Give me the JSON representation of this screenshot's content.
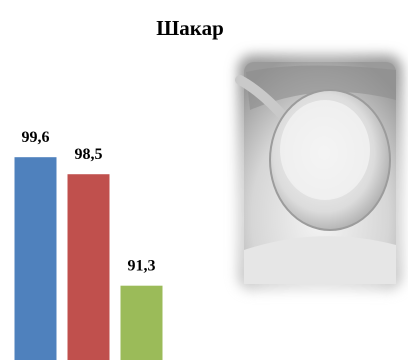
{
  "chart_data": {
    "type": "bar",
    "title": "Шакар",
    "categories": [
      null,
      null,
      null
    ],
    "series": [
      {
        "values": [
          99.6,
          98.5,
          91.3
        ],
        "value_labels": [
          "99,6",
          "98,5",
          "91,3"
        ],
        "colors": [
          "#4f81bd",
          "#c0504d",
          "#9bbb59"
        ]
      }
    ],
    "ylim": [
      86.5,
      100
    ]
  }
}
